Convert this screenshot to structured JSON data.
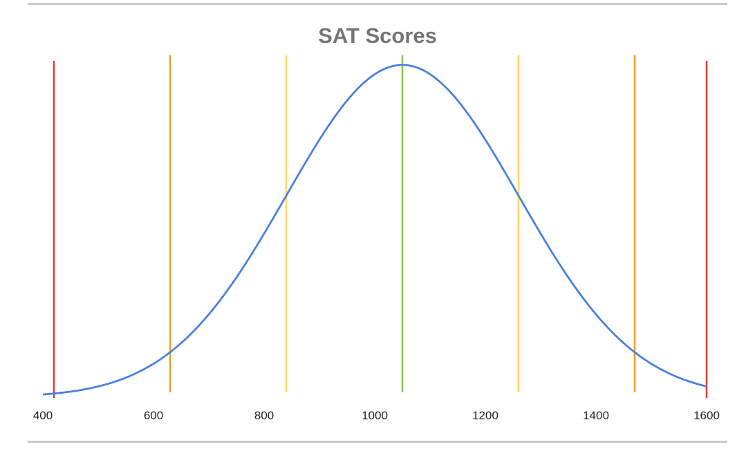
{
  "chart_data": {
    "type": "line",
    "title": "SAT Scores",
    "xlabel": "",
    "ylabel": "",
    "xlim": [
      400,
      1600
    ],
    "x_ticks": [
      "400",
      "600",
      "800",
      "1000",
      "1200",
      "1400",
      "1600"
    ],
    "series": [
      {
        "color": "#4a7fe0",
        "curve": "normal",
        "mean": 1050,
        "sd": 210,
        "x_range": [
          400,
          1600
        ]
      }
    ],
    "vertical_lines": [
      {
        "x": 420,
        "color": "#e0393e"
      },
      {
        "x": 630,
        "color": "#f39c1f"
      },
      {
        "x": 840,
        "color": "#ffd866"
      },
      {
        "x": 1050,
        "color": "#8bc34a"
      },
      {
        "x": 1260,
        "color": "#ffd866"
      },
      {
        "x": 1470,
        "color": "#f39c1f"
      },
      {
        "x": 1600,
        "color": "#e0393e"
      }
    ],
    "grid": false,
    "legend": "none"
  }
}
